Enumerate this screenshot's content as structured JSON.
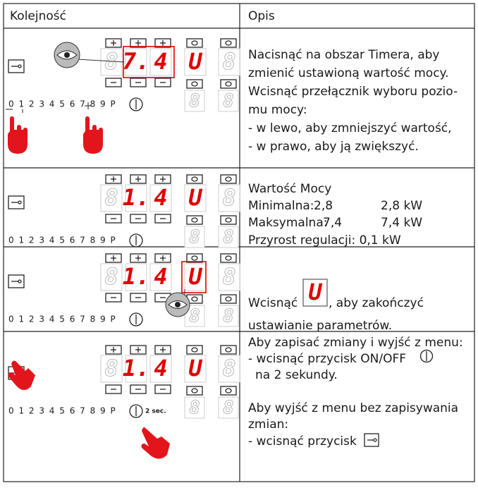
{
  "table": {
    "headers": [
      "Kolejność",
      "Opis"
    ],
    "rows": [
      {
        "scale": "0 1 2 3 4 5 6 7 8 9 P",
        "blank": "8",
        "power": [
          "7.",
          "4"
        ],
        "timer": "U",
        "description": [
          "Nacisnąć na obszar Timera, aby",
          "zmienić ustawioną wartość mocy.",
          "Wcisnąć przełącznik wyboru pozio-",
          "mu mocy:",
          "- w lewo, aby zmniejszyć wartość,",
          "- w prawo, aby ją zwiększyć."
        ]
      },
      {
        "scale": "0 1 2 3 4 5 6 7 8 9 P",
        "blank": "8",
        "power": [
          "1.",
          "4"
        ],
        "timer": "U",
        "description": {
          "title": "Wartość Mocy",
          "values": [
            [
              "Minimalna:",
              "2,8",
              "2,8 kW"
            ],
            [
              "Maksymalna:",
              "7,4",
              "7,4 kW"
            ]
          ],
          "step": "Przyrost regulacji: 0,1 kW"
        }
      },
      {
        "scale": "0 1 2 3 4 5 6 7 8 9 P",
        "blank": "8",
        "power": [
          "1.",
          "4"
        ],
        "timer": "U",
        "description": [
          "Wcisnąć",
          ", aby zakończyć",
          "ustawianie parametrów."
        ]
      },
      {
        "scale": "0 1 2 3 4 5 6 7 8 9 P",
        "blank": "8",
        "power": [
          "1.",
          "4"
        ],
        "timer": "U",
        "hint": "2 sec.",
        "description": [
          "Aby zapisać zmiany i wyjść z menu:",
          "- wcisnąć przycisk ON/OFF",
          "na 2 sekundy.",
          "Aby wyjść z menu bez zapisywania",
          "zmian:",
          "- wcisnąć przycisk"
        ]
      }
    ]
  }
}
